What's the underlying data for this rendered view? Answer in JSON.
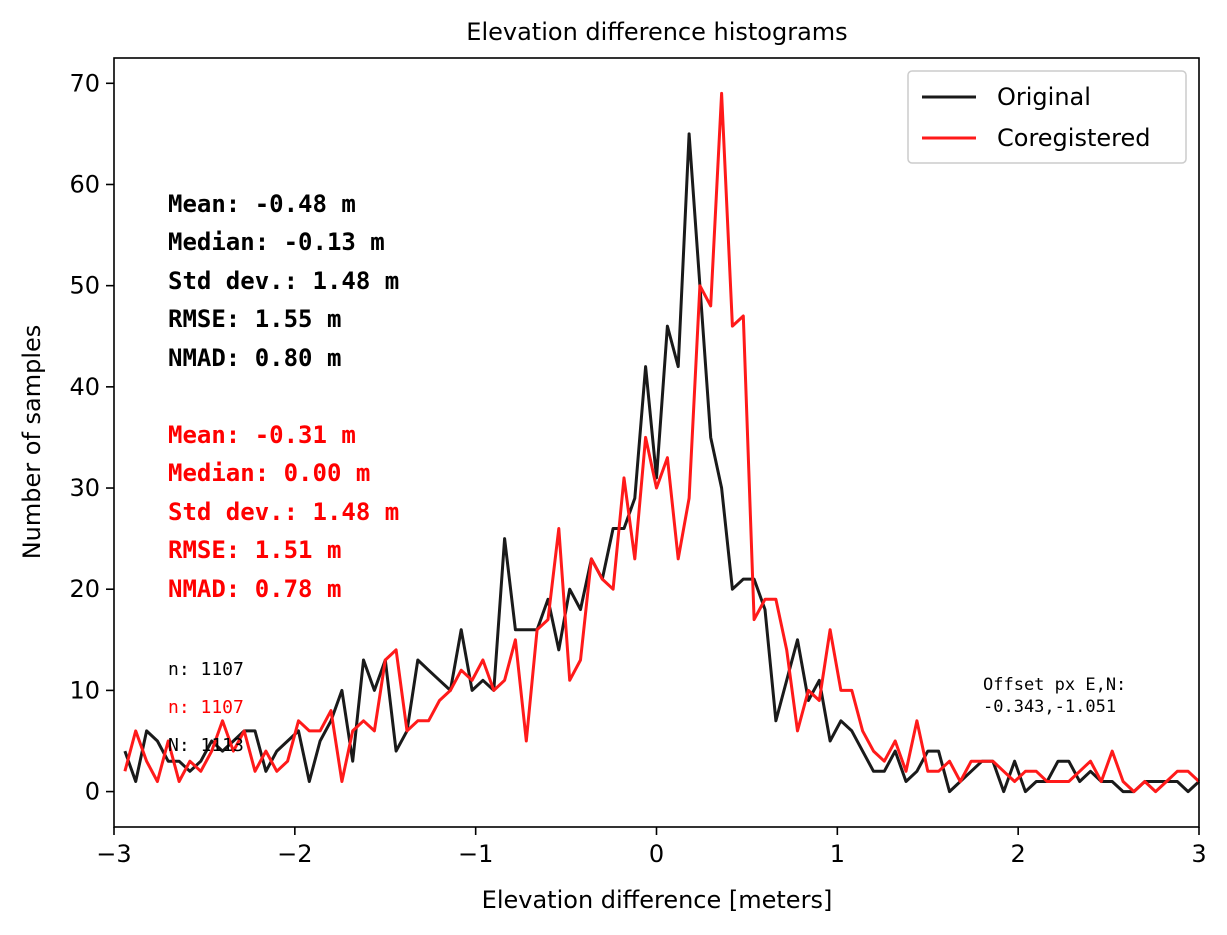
{
  "chart_data": {
    "type": "line",
    "title": "Elevation difference histograms",
    "xlabel": "Elevation difference [meters]",
    "ylabel": "Number of samples",
    "xlim": [
      -3,
      3
    ],
    "ylim": [
      -3.5,
      72.5
    ],
    "xticks": [
      -3,
      -2,
      -1,
      0,
      1,
      2,
      3
    ],
    "xtick_labels": [
      "−3",
      "−2",
      "−1",
      "0",
      "1",
      "2",
      "3"
    ],
    "yticks": [
      0,
      10,
      20,
      30,
      40,
      50,
      60,
      70
    ],
    "ytick_labels": [
      "0",
      "10",
      "20",
      "30",
      "40",
      "50",
      "60",
      "70"
    ],
    "grid": false,
    "legend": {
      "placement": "top-right",
      "entries": [
        "Original",
        "Coregistered"
      ]
    },
    "colors": {
      "original": "#1a1a1a",
      "coregistered": "#ff1a1a",
      "stats_original": "#000000",
      "stats_coregistered": "#ff0000"
    },
    "series": [
      {
        "name": "Original",
        "x": [
          -2.94,
          -2.88,
          -2.82,
          -2.76,
          -2.7,
          -2.64,
          -2.58,
          -2.52,
          -2.46,
          -2.4,
          -2.34,
          -2.28,
          -2.22,
          -2.16,
          -2.1,
          -2.04,
          -1.98,
          -1.92,
          -1.86,
          -1.8,
          -1.74,
          -1.68,
          -1.62,
          -1.56,
          -1.5,
          -1.44,
          -1.38,
          -1.32,
          -1.26,
          -1.2,
          -1.14,
          -1.08,
          -1.02,
          -0.96,
          -0.9,
          -0.84,
          -0.78,
          -0.72,
          -0.66,
          -0.6,
          -0.54,
          -0.48,
          -0.42,
          -0.36,
          -0.3,
          -0.24,
          -0.18,
          -0.12,
          -0.06,
          0.0,
          0.06,
          0.12,
          0.18,
          0.24,
          0.3,
          0.36,
          0.42,
          0.48,
          0.54,
          0.6,
          0.66,
          0.72,
          0.78,
          0.84,
          0.9,
          0.96,
          1.02,
          1.08,
          1.14,
          1.2,
          1.26,
          1.32,
          1.38,
          1.44,
          1.5,
          1.56,
          1.62,
          1.68,
          1.74,
          1.8,
          1.86,
          1.92,
          1.98,
          2.04,
          2.1,
          2.16,
          2.22,
          2.28,
          2.34,
          2.4,
          2.46,
          2.52,
          2.58,
          2.64,
          2.7,
          2.76,
          2.82,
          2.88,
          2.94,
          3.0
        ],
        "values": [
          4,
          1,
          6,
          5,
          3,
          3,
          2,
          3,
          5,
          4,
          5,
          6,
          6,
          2,
          4,
          5,
          6,
          1,
          5,
          7,
          10,
          3,
          13,
          10,
          13,
          4,
          6,
          13,
          12,
          11,
          10,
          16,
          10,
          11,
          10,
          25,
          16,
          16,
          16,
          19,
          14,
          20,
          18,
          23,
          21,
          26,
          26,
          29,
          42,
          31,
          46,
          42,
          65,
          50,
          35,
          30,
          20,
          21,
          21,
          18,
          7,
          11,
          15,
          9,
          11,
          5,
          7,
          6,
          4,
          2,
          2,
          4,
          1,
          2,
          4,
          4,
          0,
          1,
          2,
          3,
          3,
          0,
          3,
          0,
          1,
          1,
          3,
          3,
          1,
          2,
          1,
          1,
          0,
          0,
          1,
          1,
          1,
          1,
          0,
          1
        ]
      },
      {
        "name": "Coregistered",
        "x": [
          -2.94,
          -2.88,
          -2.82,
          -2.76,
          -2.7,
          -2.64,
          -2.58,
          -2.52,
          -2.46,
          -2.4,
          -2.34,
          -2.28,
          -2.22,
          -2.16,
          -2.1,
          -2.04,
          -1.98,
          -1.92,
          -1.86,
          -1.8,
          -1.74,
          -1.68,
          -1.62,
          -1.56,
          -1.5,
          -1.44,
          -1.38,
          -1.32,
          -1.26,
          -1.2,
          -1.14,
          -1.08,
          -1.02,
          -0.96,
          -0.9,
          -0.84,
          -0.78,
          -0.72,
          -0.66,
          -0.6,
          -0.54,
          -0.48,
          -0.42,
          -0.36,
          -0.3,
          -0.24,
          -0.18,
          -0.12,
          -0.06,
          0.0,
          0.06,
          0.12,
          0.18,
          0.24,
          0.3,
          0.36,
          0.42,
          0.48,
          0.54,
          0.6,
          0.66,
          0.72,
          0.78,
          0.84,
          0.9,
          0.96,
          1.02,
          1.08,
          1.14,
          1.2,
          1.26,
          1.32,
          1.38,
          1.44,
          1.5,
          1.56,
          1.62,
          1.68,
          1.74,
          1.8,
          1.86,
          1.92,
          1.98,
          2.04,
          2.1,
          2.16,
          2.22,
          2.28,
          2.34,
          2.4,
          2.46,
          2.52,
          2.58,
          2.64,
          2.7,
          2.76,
          2.82,
          2.88,
          2.94,
          3.0
        ],
        "values": [
          2,
          6,
          3,
          1,
          5,
          1,
          3,
          2,
          4,
          7,
          4,
          6,
          2,
          4,
          2,
          3,
          7,
          6,
          6,
          8,
          1,
          6,
          7,
          6,
          13,
          14,
          6,
          7,
          7,
          9,
          10,
          12,
          11,
          13,
          10,
          11,
          15,
          5,
          16,
          17,
          26,
          11,
          13,
          23,
          21,
          20,
          31,
          23,
          35,
          30,
          33,
          23,
          29,
          50,
          48,
          69,
          46,
          47,
          17,
          19,
          19,
          14,
          6,
          10,
          9,
          16,
          10,
          10,
          6,
          4,
          3,
          5,
          2,
          7,
          2,
          2,
          3,
          1,
          3,
          3,
          3,
          2,
          1,
          2,
          2,
          1,
          1,
          1,
          2,
          3,
          1,
          4,
          1,
          0,
          1,
          0,
          1,
          2,
          2,
          1
        ]
      }
    ],
    "annotations": {
      "stats_original": [
        "Mean: -0.48 m",
        "Median: -0.13 m",
        "Std dev.: 1.48 m",
        "RMSE: 1.55 m",
        "NMAD: 0.80 m"
      ],
      "stats_coregistered": [
        "Mean: -0.31 m",
        "Median: 0.00 m",
        "Std dev.: 1.48 m",
        "RMSE: 1.51 m",
        "NMAD: 0.78 m"
      ],
      "count_original": "n: 1107",
      "count_coregistered": "n: 1107",
      "count_total": "N: 1113",
      "offset_label": "Offset px E,N:",
      "offset_value": "-0.343,-1.051"
    }
  }
}
